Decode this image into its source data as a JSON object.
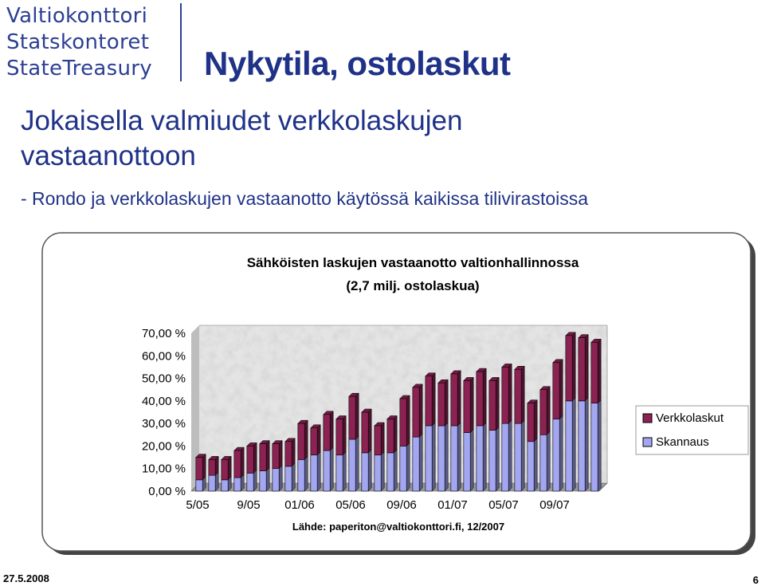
{
  "logo": {
    "lines": [
      "Valtiokonttori",
      "Statskontoret",
      "StateTreasury"
    ]
  },
  "slide": {
    "title": "Nykytila, ostolaskut",
    "heading": "Jokaisella valmiudet verkkolaskujen vastaanottoon",
    "bullet": "- Rondo ja verkkolaskujen vastaanotto käytössä kaikissa tilivirastoissa",
    "date": "27.5.2008",
    "page_number": "6"
  },
  "colors": {
    "brand": "#1f3288",
    "verkkolaskut": "#8b2252",
    "skannaus": "#a3a6f0"
  },
  "chart_data": {
    "type": "bar",
    "stacked": true,
    "title_line1": "Sähköisten laskujen vastaanotto valtionhallinnossa",
    "title_line2": "(2,7 milj. ostolaskua)",
    "source": "Lähde: paperiton@valtiokonttori.fi, 12/2007",
    "categories": [
      "5/05",
      "6/05",
      "7/05",
      "8/05",
      "9/05",
      "10/05",
      "11/05",
      "12/05",
      "01/06",
      "02/06",
      "03/06",
      "04/06",
      "05/06",
      "06/06",
      "07/06",
      "08/06",
      "09/06",
      "10/06",
      "11/06",
      "12/06",
      "01/07",
      "02/07",
      "03/07",
      "04/07",
      "05/07",
      "06/07",
      "07/07",
      "08/07",
      "09/07",
      "10/07",
      "11/07",
      "12/07"
    ],
    "x_tick_labels": [
      "5/05",
      "9/05",
      "01/06",
      "05/06",
      "09/06",
      "01/07",
      "05/07",
      "09/07"
    ],
    "series": [
      {
        "name": "Skannaus",
        "values": [
          5,
          7,
          5,
          6,
          8,
          9,
          10,
          11,
          14,
          16,
          18,
          16,
          23,
          17,
          16,
          17,
          20,
          24,
          29,
          29,
          29,
          26,
          29,
          27,
          30,
          30,
          22,
          25,
          32,
          40,
          40,
          39
        ]
      },
      {
        "name": "Verkkolaskut",
        "values": [
          10,
          7,
          9,
          12,
          12,
          12,
          11,
          11,
          16,
          12,
          16,
          16,
          19,
          18,
          13,
          15,
          21,
          22,
          22,
          19,
          23,
          23,
          24,
          22,
          25,
          24,
          17,
          20,
          25,
          29,
          28,
          27
        ]
      }
    ],
    "legend": [
      "Verkkolaskut",
      "Skannaus"
    ],
    "legend_position": "right",
    "ylim": [
      0,
      70
    ],
    "y_ticks": [
      "0,00 %",
      "10,00 %",
      "20,00 %",
      "30,00 %",
      "40,00 %",
      "50,00 %",
      "60,00 %",
      "70,00 %"
    ],
    "y_tick_values": [
      0,
      10,
      20,
      30,
      40,
      50,
      60,
      70
    ]
  }
}
